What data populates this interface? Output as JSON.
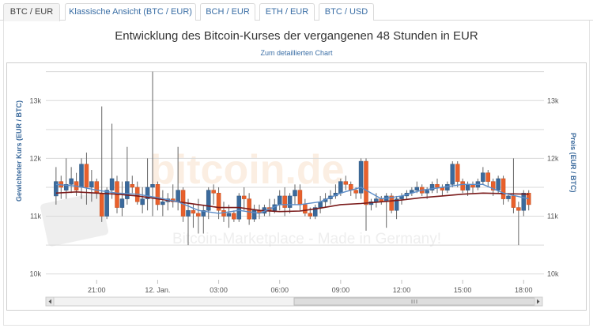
{
  "tabs": [
    {
      "label": "BTC / EUR",
      "active": true
    },
    {
      "label": "Klassische Ansicht (BTC / EUR)",
      "active": false
    },
    {
      "label": "BCH / EUR",
      "active": false
    },
    {
      "label": "ETH / EUR",
      "active": false
    },
    {
      "label": "BTC / USD",
      "active": false
    }
  ],
  "header": {
    "title": "Entwicklung des Bitcoin-Kurses der vergangenen 48 Stunden in EUR",
    "detail_link": "Zum detaillierten Chart"
  },
  "watermark": {
    "logo_text": "bitcoin.de",
    "tagline": "Bitcoin-Marketplace - Made in Germany!"
  },
  "colors": {
    "up": "#3b6a9c",
    "down": "#e8602c",
    "avg_line": "#7a1a1a",
    "vwap_line": "#5b8cc8",
    "wick": "#666666",
    "grid": "#d9d9d9"
  },
  "chart_data": {
    "type": "candlestick",
    "title": "Entwicklung des Bitcoin-Kurses der vergangenen 48 Stunden in EUR",
    "ylabel_left": "Gewichteter Kurs (EUR / BTC)",
    "ylabel_right": "Preis (EUR / BTC)",
    "y_ticks": [
      "10k",
      "11k",
      "12k",
      "13k"
    ],
    "y_tick_values": [
      10000,
      11000,
      12000,
      13000
    ],
    "ylim": [
      9900,
      13400
    ],
    "x_ticks": [
      "21:00",
      "12. Jan.",
      "03:00",
      "06:00",
      "09:00",
      "12:00",
      "15:00",
      "18:00"
    ],
    "x_tick_values": [
      3,
      6,
      9,
      12,
      15,
      18,
      21,
      24
    ],
    "xlim": [
      0.5,
      25
    ],
    "grid": true,
    "candles": [
      {
        "x": 1.0,
        "o": 11350,
        "c": 11600,
        "h": 11850,
        "l": 11200
      },
      {
        "x": 1.25,
        "o": 11600,
        "c": 11500,
        "h": 11700,
        "l": 11300
      },
      {
        "x": 1.5,
        "o": 11450,
        "c": 11550,
        "h": 12000,
        "l": 11300
      },
      {
        "x": 1.75,
        "o": 11550,
        "c": 11650,
        "h": 11850,
        "l": 11400
      },
      {
        "x": 2.0,
        "o": 11600,
        "c": 11450,
        "h": 11750,
        "l": 11350
      },
      {
        "x": 2.25,
        "o": 11500,
        "c": 11900,
        "h": 12000,
        "l": 11300
      },
      {
        "x": 2.5,
        "o": 11900,
        "c": 11500,
        "h": 12100,
        "l": 11200
      },
      {
        "x": 2.75,
        "o": 11500,
        "c": 11600,
        "h": 11800,
        "l": 11250
      },
      {
        "x": 3.0,
        "o": 11600,
        "c": 11400,
        "h": 11650,
        "l": 11300
      },
      {
        "x": 3.25,
        "o": 11400,
        "c": 11000,
        "h": 12900,
        "l": 10900
      },
      {
        "x": 3.5,
        "o": 11000,
        "c": 11450,
        "h": 11500,
        "l": 10950
      },
      {
        "x": 3.75,
        "o": 11450,
        "c": 11650,
        "h": 12600,
        "l": 11300
      },
      {
        "x": 4.0,
        "o": 11600,
        "c": 11150,
        "h": 11700,
        "l": 11050
      },
      {
        "x": 4.25,
        "o": 11150,
        "c": 11300,
        "h": 11600,
        "l": 11000
      },
      {
        "x": 4.5,
        "o": 11300,
        "c": 11600,
        "h": 12200,
        "l": 11200
      },
      {
        "x": 4.75,
        "o": 11550,
        "c": 11500,
        "h": 11700,
        "l": 11400
      },
      {
        "x": 5.0,
        "o": 11500,
        "c": 11250,
        "h": 11600,
        "l": 11200
      },
      {
        "x": 5.25,
        "o": 11200,
        "c": 11300,
        "h": 11500,
        "l": 11050
      },
      {
        "x": 5.5,
        "o": 11300,
        "c": 11500,
        "h": 12000,
        "l": 11100
      },
      {
        "x": 5.75,
        "o": 11500,
        "c": 11550,
        "h": 13500,
        "l": 11000
      },
      {
        "x": 6.0,
        "o": 11550,
        "c": 11200,
        "h": 11600,
        "l": 11100
      },
      {
        "x": 6.25,
        "o": 11200,
        "c": 11250,
        "h": 11450,
        "l": 11000
      },
      {
        "x": 6.5,
        "o": 11250,
        "c": 11300,
        "h": 11400,
        "l": 11100
      },
      {
        "x": 6.75,
        "o": 11300,
        "c": 11250,
        "h": 11550,
        "l": 11150
      },
      {
        "x": 7.0,
        "o": 11250,
        "c": 11450,
        "h": 12200,
        "l": 11100
      },
      {
        "x": 7.25,
        "o": 11450,
        "c": 11000,
        "h": 11500,
        "l": 10900
      },
      {
        "x": 7.5,
        "o": 11000,
        "c": 11100,
        "h": 11300,
        "l": 10500
      },
      {
        "x": 7.75,
        "o": 11100,
        "c": 11050,
        "h": 11200,
        "l": 10800
      },
      {
        "x": 8.0,
        "o": 11050,
        "c": 11000,
        "h": 11300,
        "l": 10700
      },
      {
        "x": 8.25,
        "o": 11000,
        "c": 11100,
        "h": 11200,
        "l": 10700
      },
      {
        "x": 8.5,
        "o": 11100,
        "c": 11450,
        "h": 11500,
        "l": 10950
      },
      {
        "x": 8.75,
        "o": 11450,
        "c": 11400,
        "h": 11550,
        "l": 11200
      },
      {
        "x": 9.0,
        "o": 11400,
        "c": 11100,
        "h": 11500,
        "l": 10950
      },
      {
        "x": 9.25,
        "o": 11100,
        "c": 11000,
        "h": 11250,
        "l": 10900
      },
      {
        "x": 9.5,
        "o": 11000,
        "c": 11050,
        "h": 11200,
        "l": 10800
      },
      {
        "x": 9.75,
        "o": 11050,
        "c": 10950,
        "h": 11100,
        "l": 10900
      },
      {
        "x": 10.0,
        "o": 10950,
        "c": 11350,
        "h": 11400,
        "l": 10900
      },
      {
        "x": 10.25,
        "o": 11350,
        "c": 11300,
        "h": 11500,
        "l": 11100
      },
      {
        "x": 10.5,
        "o": 11300,
        "c": 10950,
        "h": 11400,
        "l": 10850
      },
      {
        "x": 10.75,
        "o": 10950,
        "c": 11100,
        "h": 11200,
        "l": 10900
      },
      {
        "x": 11.0,
        "o": 11100,
        "c": 11050,
        "h": 11200,
        "l": 10950
      },
      {
        "x": 11.25,
        "o": 11050,
        "c": 11150,
        "h": 11200,
        "l": 11000
      },
      {
        "x": 11.5,
        "o": 11150,
        "c": 11100,
        "h": 11300,
        "l": 11000
      },
      {
        "x": 11.75,
        "o": 11100,
        "c": 11200,
        "h": 11300,
        "l": 11050
      },
      {
        "x": 12.0,
        "o": 11200,
        "c": 11350,
        "h": 11450,
        "l": 11100
      },
      {
        "x": 12.25,
        "o": 11350,
        "c": 11150,
        "h": 11500,
        "l": 11000
      },
      {
        "x": 12.5,
        "o": 11150,
        "c": 11350,
        "h": 11400,
        "l": 11050
      },
      {
        "x": 12.75,
        "o": 11350,
        "c": 11450,
        "h": 11550,
        "l": 11200
      },
      {
        "x": 13.0,
        "o": 11450,
        "c": 11200,
        "h": 11550,
        "l": 11100
      },
      {
        "x": 13.25,
        "o": 11200,
        "c": 11050,
        "h": 11300,
        "l": 11000
      },
      {
        "x": 13.5,
        "o": 11050,
        "c": 11000,
        "h": 11150,
        "l": 10950
      },
      {
        "x": 13.75,
        "o": 11000,
        "c": 11150,
        "h": 11200,
        "l": 10950
      },
      {
        "x": 14.0,
        "o": 11150,
        "c": 11250,
        "h": 11350,
        "l": 11050
      },
      {
        "x": 14.25,
        "o": 11250,
        "c": 11300,
        "h": 11400,
        "l": 11150
      },
      {
        "x": 14.5,
        "o": 11300,
        "c": 11350,
        "h": 11450,
        "l": 11200
      },
      {
        "x": 14.75,
        "o": 11350,
        "c": 11400,
        "h": 11550,
        "l": 11300
      },
      {
        "x": 15.0,
        "o": 11400,
        "c": 11600,
        "h": 11650,
        "l": 11350
      },
      {
        "x": 15.25,
        "o": 11600,
        "c": 11550,
        "h": 11700,
        "l": 11450
      },
      {
        "x": 15.5,
        "o": 11550,
        "c": 11450,
        "h": 11600,
        "l": 11350
      },
      {
        "x": 15.75,
        "o": 11450,
        "c": 11400,
        "h": 11500,
        "l": 11300
      },
      {
        "x": 16.0,
        "o": 11400,
        "c": 11950,
        "h": 12000,
        "l": 11300
      },
      {
        "x": 16.25,
        "o": 11950,
        "c": 11200,
        "h": 12000,
        "l": 10750
      },
      {
        "x": 16.5,
        "o": 11200,
        "c": 11250,
        "h": 11300,
        "l": 11100
      },
      {
        "x": 16.75,
        "o": 11250,
        "c": 11300,
        "h": 11400,
        "l": 11150
      },
      {
        "x": 17.0,
        "o": 11300,
        "c": 11250,
        "h": 11350,
        "l": 11200
      },
      {
        "x": 17.25,
        "o": 11250,
        "c": 11350,
        "h": 11400,
        "l": 10800
      },
      {
        "x": 17.5,
        "o": 11350,
        "c": 11100,
        "h": 11400,
        "l": 11050
      },
      {
        "x": 17.75,
        "o": 11100,
        "c": 11300,
        "h": 11350,
        "l": 10950
      },
      {
        "x": 18.0,
        "o": 11300,
        "c": 11350,
        "h": 11400,
        "l": 11200
      },
      {
        "x": 18.25,
        "o": 11350,
        "c": 11400,
        "h": 11450,
        "l": 11300
      },
      {
        "x": 18.5,
        "o": 11400,
        "c": 11450,
        "h": 11500,
        "l": 11350
      },
      {
        "x": 18.75,
        "o": 11450,
        "c": 11500,
        "h": 11600,
        "l": 11400
      },
      {
        "x": 19.0,
        "o": 11500,
        "c": 11400,
        "h": 11550,
        "l": 11350
      },
      {
        "x": 19.25,
        "o": 11400,
        "c": 11450,
        "h": 11500,
        "l": 11300
      },
      {
        "x": 19.5,
        "o": 11450,
        "c": 11550,
        "h": 11600,
        "l": 11400
      },
      {
        "x": 19.75,
        "o": 11550,
        "c": 11500,
        "h": 11650,
        "l": 11400
      },
      {
        "x": 20.0,
        "o": 11500,
        "c": 11450,
        "h": 11550,
        "l": 11350
      },
      {
        "x": 20.25,
        "o": 11450,
        "c": 11550,
        "h": 11600,
        "l": 11400
      },
      {
        "x": 20.5,
        "o": 11550,
        "c": 11900,
        "h": 11950,
        "l": 11500
      },
      {
        "x": 20.75,
        "o": 11900,
        "c": 11600,
        "h": 11950,
        "l": 11500
      },
      {
        "x": 21.0,
        "o": 11600,
        "c": 11450,
        "h": 11650,
        "l": 11400
      },
      {
        "x": 21.25,
        "o": 11450,
        "c": 11550,
        "h": 11600,
        "l": 11350
      },
      {
        "x": 21.5,
        "o": 11550,
        "c": 11500,
        "h": 11600,
        "l": 11400
      },
      {
        "x": 21.75,
        "o": 11500,
        "c": 11600,
        "h": 11650,
        "l": 11450
      },
      {
        "x": 22.0,
        "o": 11600,
        "c": 11750,
        "h": 11850,
        "l": 11550
      },
      {
        "x": 22.25,
        "o": 11750,
        "c": 11600,
        "h": 11800,
        "l": 11500
      },
      {
        "x": 22.5,
        "o": 11600,
        "c": 11450,
        "h": 11650,
        "l": 11350
      },
      {
        "x": 22.75,
        "o": 11450,
        "c": 11650,
        "h": 11700,
        "l": 11400
      },
      {
        "x": 23.0,
        "o": 11650,
        "c": 11300,
        "h": 11700,
        "l": 11200
      },
      {
        "x": 23.25,
        "o": 11300,
        "c": 11350,
        "h": 11400,
        "l": 11250
      },
      {
        "x": 23.5,
        "o": 11350,
        "c": 11150,
        "h": 12000,
        "l": 11050
      },
      {
        "x": 23.75,
        "o": 11150,
        "c": 11100,
        "h": 11250,
        "l": 10500
      },
      {
        "x": 24.0,
        "o": 11100,
        "c": 11400,
        "h": 11450,
        "l": 11000
      },
      {
        "x": 24.25,
        "o": 11400,
        "c": 11200,
        "h": 11450,
        "l": 11100
      }
    ],
    "avg_line": {
      "x": [
        1,
        2,
        3,
        4,
        5,
        6,
        7,
        8,
        9,
        10,
        11,
        12,
        13,
        14,
        15,
        16,
        17,
        18,
        19,
        20,
        21,
        22,
        23,
        24.25
      ],
      "y": [
        11400,
        11420,
        11400,
        11380,
        11350,
        11300,
        11250,
        11200,
        11150,
        11150,
        11100,
        11080,
        11090,
        11140,
        11200,
        11220,
        11250,
        11280,
        11320,
        11350,
        11380,
        11400,
        11390,
        11380
      ]
    },
    "vwap_line": {
      "x": [
        1,
        2,
        3,
        4,
        5,
        6,
        7,
        8,
        9,
        10,
        11,
        12,
        13,
        14,
        15,
        16,
        17,
        18,
        19,
        20,
        21,
        22,
        23,
        24.25
      ],
      "y": [
        11550,
        11520,
        11450,
        11400,
        11380,
        11320,
        11250,
        11100,
        11050,
        11100,
        11050,
        11200,
        11200,
        11250,
        11400,
        11500,
        11300,
        11350,
        11450,
        11500,
        11550,
        11550,
        11400,
        11300
      ]
    },
    "navigator": {
      "window_start": 0.5,
      "window_end": 1.0
    }
  }
}
